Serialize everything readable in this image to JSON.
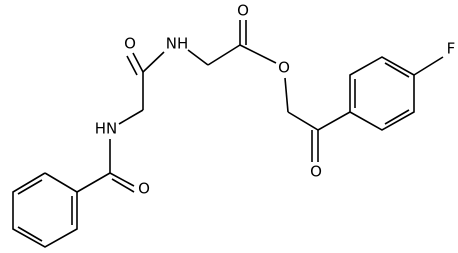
{
  "atoms": [
    {
      "label": "O"
    },
    {
      "label": "NH"
    },
    {
      "label": "O"
    },
    {
      "label": "O"
    },
    {
      "label": "F"
    },
    {
      "label": "O"
    },
    {
      "label": "HN"
    },
    {
      "label": "O"
    }
  ]
}
